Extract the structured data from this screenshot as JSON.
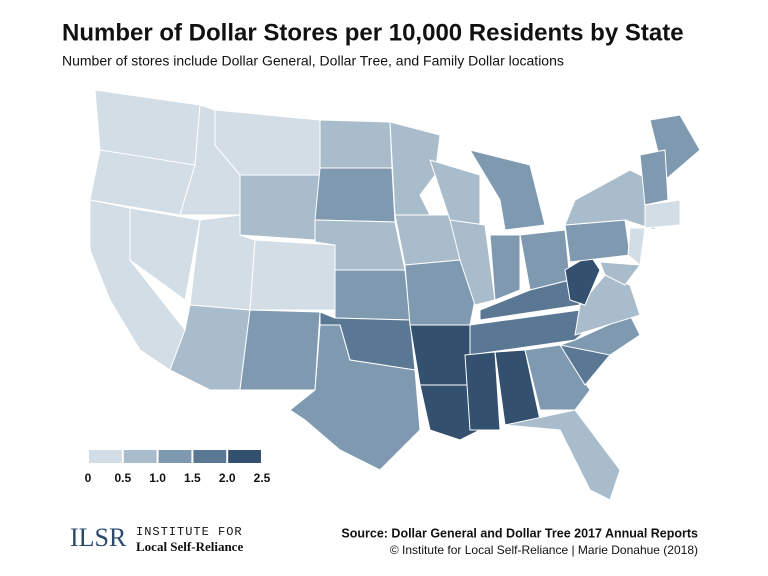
{
  "title": "Number of Dollar Stores per 10,000 Residents by State",
  "subtitle": "Number of stores include Dollar General, Dollar Tree, and Family Dollar locations",
  "map": {
    "type": "choropleth",
    "values": [
      0.3,
      0.3,
      0.3,
      0.3,
      0.3,
      0.3,
      0.7,
      0.3,
      0.3,
      0.7,
      1.2,
      0.7,
      1.2,
      0.7,
      1.2,
      1.7,
      1.2,
      0.7,
      0.7,
      1.2,
      2.2,
      2.2,
      0.7,
      0.7,
      1.2,
      1.2,
      1.2,
      1.7,
      1.7,
      2.2,
      2.2,
      1.2,
      0.7,
      1.7,
      1.2,
      0.7,
      2.2,
      1.2,
      0.7,
      1.2,
      1.2,
      0.3,
      0.3,
      0.7
    ],
    "legend": {
      "bins": [
        0,
        0.5,
        {
          "value": 1,
          "label": "1.0"
        },
        1.5,
        {
          "value": 2,
          "label": "2.0"
        },
        2.5
      ],
      "colors": [
        "#d3dde6",
        "#a9bccb",
        "#7f9ab0",
        "#5a7894",
        "#34506f"
      ]
    }
  },
  "source": "Source: Dollar General and Dollar Tree 2017 Annual Reports",
  "credit": "© Institute for Local Self-Reliance | Marie Donahue (2018)",
  "logo": {
    "mark": "ILSR",
    "line1": "INSTITUTE FOR",
    "line2": "Local Self-Reliance"
  }
}
